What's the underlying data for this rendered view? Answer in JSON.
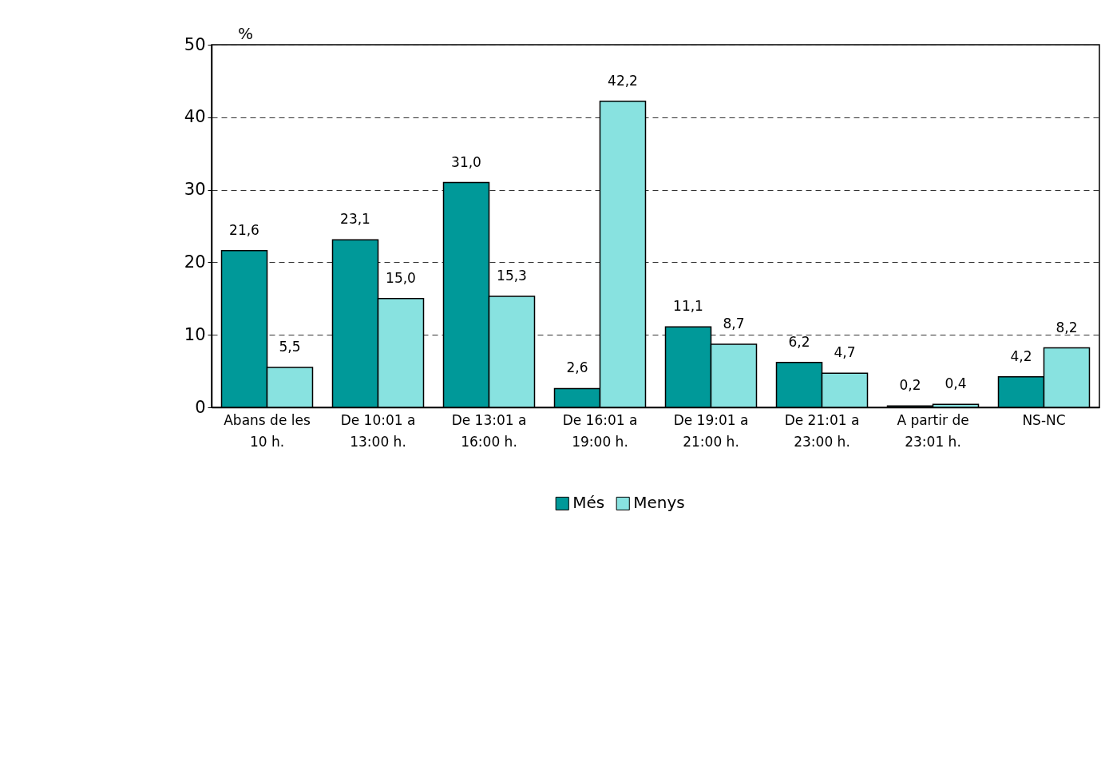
{
  "chart_data": {
    "type": "bar",
    "ylabel": "%",
    "categories": [
      "Abans de les 10 h.",
      "De 10:01 a 13:00 h.",
      "De 13:01 a 16:00 h.",
      "De 16:01 a 19:00 h.",
      "De 19:01 a 21:00 h.",
      "De 21:01 a 23:00 h.",
      "A partir de 23:01 h.",
      "NS-NC"
    ],
    "series": [
      {
        "name": "Més",
        "color": "#009999",
        "values": [
          21.6,
          23.1,
          31.0,
          2.6,
          11.1,
          6.2,
          0.2,
          4.2
        ],
        "value_labels": [
          "21,6",
          "23,1",
          "31,0",
          "2,6",
          "11,1",
          "6,2",
          "0,2",
          "4,2"
        ]
      },
      {
        "name": "Menys",
        "color": "#88e2e0",
        "values": [
          5.5,
          15.0,
          15.3,
          42.2,
          8.7,
          4.7,
          0.4,
          8.2
        ],
        "value_labels": [
          "5,5",
          "15,0",
          "15,3",
          "42,2",
          "8,7",
          "4,7",
          "0,4",
          "8,2"
        ]
      }
    ],
    "ylim": [
      0,
      50
    ],
    "yticks": [
      0,
      10,
      20,
      30,
      40,
      50
    ],
    "grid": "y",
    "legend": "bottom"
  }
}
